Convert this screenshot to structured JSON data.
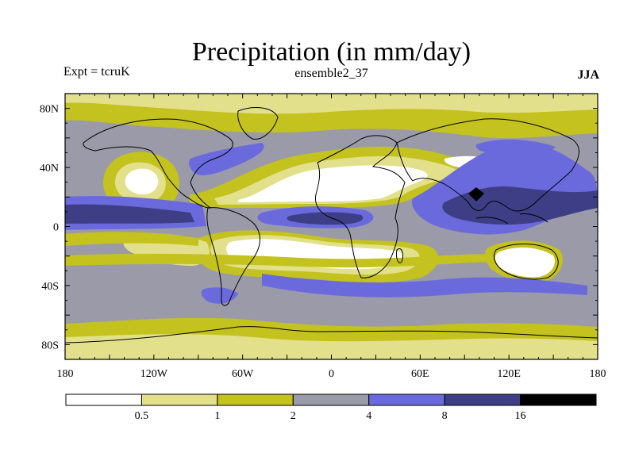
{
  "title": "Precipitation (in mm/day)",
  "subtitle_left": "Expt = tcruK",
  "subtitle_center": "ensemble2_37",
  "subtitle_right": "JJA",
  "map": {
    "projection": "equirectangular",
    "lon_range": [
      -180,
      180
    ],
    "lat_range": [
      -90,
      90
    ],
    "x_ticks": [
      {
        "lon": -180,
        "label": "180"
      },
      {
        "lon": -120,
        "label": "120W"
      },
      {
        "lon": -60,
        "label": "60W"
      },
      {
        "lon": 0,
        "label": "0"
      },
      {
        "lon": 60,
        "label": "60E"
      },
      {
        "lon": 120,
        "label": "120E"
      },
      {
        "lon": 180,
        "label": "180"
      }
    ],
    "y_ticks": [
      {
        "lat": 80,
        "label": "80N"
      },
      {
        "lat": 40,
        "label": "40N"
      },
      {
        "lat": 0,
        "label": "0"
      },
      {
        "lat": -40,
        "label": "40S"
      },
      {
        "lat": -80,
        "label": "80S"
      }
    ]
  },
  "colorbar": {
    "colors": [
      "#ffffff",
      "#e2e08a",
      "#c4c21e",
      "#9a9aa8",
      "#6a6adc",
      "#3e3e86",
      "#000000"
    ],
    "labels": [
      "0.5",
      "1",
      "2",
      "4",
      "8",
      "16"
    ]
  }
}
